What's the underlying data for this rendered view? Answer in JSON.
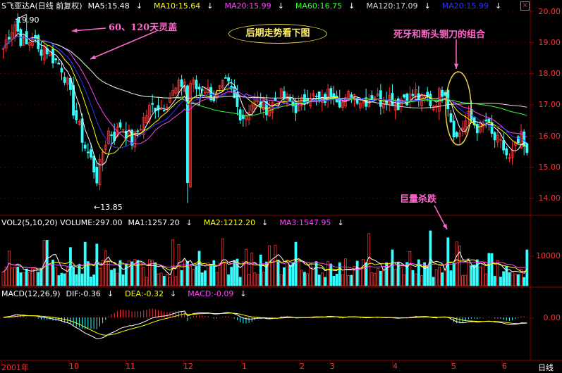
{
  "header_price": {
    "title": "S飞亚达A(日线 前复权)",
    "ma5": "MA5:15.48",
    "ma10": "MA10:15.64",
    "ma20": "MA20:15.99",
    "ma60": "MA60:16.75",
    "ma120": "MA120:17.09",
    "ma20b": "MA20:15.99"
  },
  "header_vol": {
    "title": "VOL2(5,10,20) VOLUME:297.00",
    "ma1": "MA1:1257.20",
    "ma2": "MA2:1212.20",
    "ma3": "MA3:1547.95"
  },
  "header_macd": {
    "title": "MACD(12,26,9)",
    "dif": "DIF:-0.36",
    "dea": "DEA:-0.32",
    "macd": "MACD:-0.09"
  },
  "annotations": {
    "ma_cover": "60、120天灵盖",
    "later_trend": "后期走势看下图",
    "dead_fork": "死牙和断头铡刀的组合",
    "huge_volume": "巨量杀跌"
  },
  "price_labels": {
    "high": "19.90",
    "low": "←13.85"
  },
  "period_label": "日线",
  "colors": {
    "up": "#ff3333",
    "down": "#33ffff",
    "ma5": "#ffffff",
    "ma10": "#ffff00",
    "ma20": "#ff44ff",
    "ma60": "#33ff33",
    "ma120": "#dddddd",
    "ma20b": "#3333ff",
    "grid": "#8b0000",
    "annotation": "#ff66cc"
  },
  "chart_data": [
    {
      "type": "candlestick",
      "title": "S飞亚达A(日线 前复权)",
      "y_ticks": [
        14.0,
        15.0,
        16.0,
        17.0,
        18.0,
        19.0,
        20.0
      ],
      "ylim": [
        13.6,
        20.2
      ],
      "x_ticks": [
        "2001年",
        "10",
        "11",
        "12",
        "1",
        "2",
        "3",
        "4",
        "5",
        "6"
      ],
      "high": 19.9,
      "low": 13.85,
      "series": [
        {
          "name": "MA5",
          "last": 15.48
        },
        {
          "name": "MA10",
          "last": 15.64
        },
        {
          "name": "MA20",
          "last": 15.99
        },
        {
          "name": "MA60",
          "last": 16.75
        },
        {
          "name": "MA120",
          "last": 17.09
        }
      ],
      "close_path": [
        [
          "2001年",
          18.8
        ],
        [
          "2001年",
          19.3
        ],
        [
          "2001年",
          19.6
        ],
        [
          "2001年",
          19.1
        ],
        [
          "2001年",
          18.9
        ],
        [
          "2001年",
          19.2
        ],
        [
          "2001年",
          18.7
        ],
        [
          "2001年",
          18.9
        ],
        [
          "2001年",
          18.6
        ],
        [
          "2001年",
          18.4
        ],
        [
          "10",
          18.2
        ],
        [
          "10",
          17.6
        ],
        [
          "10",
          16.8
        ],
        [
          "10",
          16.2
        ],
        [
          "10",
          15.6
        ],
        [
          "10",
          15.2
        ],
        [
          "10",
          14.6
        ],
        [
          "10",
          15.6
        ],
        [
          "10",
          16.2
        ],
        [
          "10",
          16.0
        ],
        [
          "11",
          16.4
        ],
        [
          "11",
          16.1
        ],
        [
          "11",
          15.8
        ],
        [
          "11",
          16.2
        ],
        [
          "11",
          16.6
        ],
        [
          "11",
          16.9
        ],
        [
          "11",
          17.0
        ],
        [
          "11",
          16.9
        ],
        [
          "11",
          17.2
        ],
        [
          "11",
          17.4
        ],
        [
          "12",
          17.6
        ],
        [
          "12",
          17.8
        ],
        [
          "12",
          17.7
        ],
        [
          "12",
          17.5
        ],
        [
          "12",
          17.6
        ],
        [
          "12",
          17.4
        ],
        [
          "12",
          17.2
        ],
        [
          "12",
          17.5
        ],
        [
          "12",
          17.7
        ],
        [
          "12",
          17.3
        ],
        [
          "1",
          16.8
        ],
        [
          "1",
          16.6
        ],
        [
          "1",
          17.0
        ],
        [
          "1",
          17.2
        ],
        [
          "1",
          17.0
        ],
        [
          "1",
          16.9
        ],
        [
          "1",
          17.1
        ],
        [
          "1",
          17.3
        ],
        [
          "1",
          17.2
        ],
        [
          "1",
          17.0
        ],
        [
          "2",
          16.9
        ],
        [
          "2",
          17.1
        ],
        [
          "2",
          17.4
        ],
        [
          "2",
          17.2
        ],
        [
          "2",
          17.0
        ],
        [
          "3",
          17.3
        ],
        [
          "3",
          17.5
        ],
        [
          "3",
          17.2
        ],
        [
          "3",
          17.0
        ],
        [
          "3",
          17.4
        ],
        [
          "3",
          17.3
        ],
        [
          "3",
          17.1
        ],
        [
          "3",
          17.2
        ],
        [
          "3",
          17.4
        ],
        [
          "3",
          17.1
        ],
        [
          "4",
          17.3
        ],
        [
          "4",
          17.2
        ],
        [
          "4",
          17.0
        ],
        [
          "4",
          17.3
        ],
        [
          "4",
          17.2
        ],
        [
          "4",
          17.4
        ],
        [
          "4",
          17.1
        ],
        [
          "4",
          17.2
        ],
        [
          "4",
          17.0
        ],
        [
          "4",
          17.3
        ],
        [
          "5",
          17.6
        ],
        [
          "5",
          16.6
        ],
        [
          "5",
          15.9
        ],
        [
          "5",
          16.3
        ],
        [
          "5",
          16.6
        ],
        [
          "5",
          16.4
        ],
        [
          "5",
          16.2
        ],
        [
          "5",
          16.5
        ],
        [
          "5",
          16.0
        ],
        [
          "5",
          15.8
        ],
        [
          "6",
          15.6
        ],
        [
          "6",
          15.2
        ],
        [
          "6",
          15.6
        ],
        [
          "6",
          15.9
        ],
        [
          "6",
          15.3
        ]
      ]
    },
    {
      "type": "bar",
      "title": "VOL2(5,10,20)",
      "y_ticks": [
        10000
      ],
      "series": [
        {
          "name": "VOLUME",
          "last": 297.0
        },
        {
          "name": "MA1",
          "last": 1257.2
        },
        {
          "name": "MA2",
          "last": 1212.2
        },
        {
          "name": "MA3",
          "last": 1547.95
        }
      ]
    },
    {
      "type": "line",
      "title": "MACD(12,26,9)",
      "y_ticks": [
        0.0
      ],
      "series": [
        {
          "name": "DIF",
          "last": -0.36
        },
        {
          "name": "DEA",
          "last": -0.32
        },
        {
          "name": "MACD",
          "last": -0.09
        }
      ]
    }
  ]
}
